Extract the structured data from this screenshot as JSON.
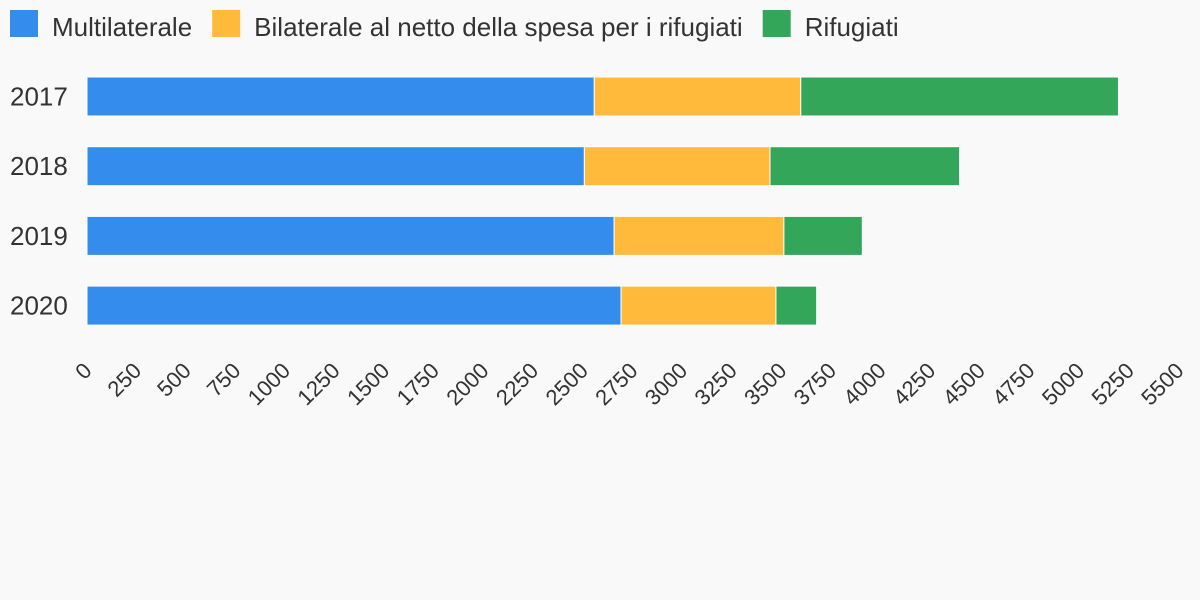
{
  "chart_data": {
    "type": "bar",
    "orientation": "horizontal",
    "stacked": true,
    "categories": [
      "2017",
      "2018",
      "2019",
      "2020"
    ],
    "series": [
      {
        "name": "Multilaterale",
        "color": "#348ded",
        "values": [
          2555,
          2505,
          2655,
          2690
        ]
      },
      {
        "name": "Bilaterale al netto della spesa per i rifugiati",
        "color": "#ffb93b",
        "values": [
          1040,
          935,
          855,
          780
        ]
      },
      {
        "name": "Rifugiati",
        "color": "#33a65a",
        "values": [
          1600,
          955,
          395,
          205
        ]
      }
    ],
    "xlim": [
      0,
      5500
    ],
    "xticks": [
      0,
      250,
      500,
      750,
      1000,
      1250,
      1500,
      1750,
      2000,
      2250,
      2500,
      2750,
      3000,
      3250,
      3500,
      3750,
      4000,
      4250,
      4500,
      4750,
      5000,
      5250,
      5500
    ],
    "legend_position": "top-left",
    "grid": false,
    "title": "",
    "xlabel": "",
    "ylabel": ""
  }
}
